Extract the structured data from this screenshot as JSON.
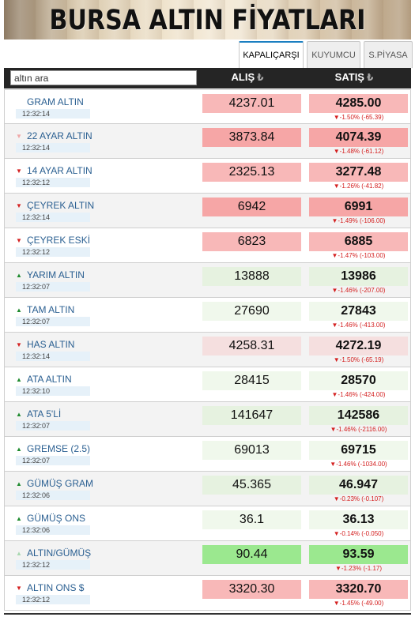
{
  "banner": {
    "title": "BURSA ALTIN FİYATLARI"
  },
  "tabs": [
    {
      "label": "KAPALIÇARŞI",
      "active": true
    },
    {
      "label": "KUYUMCU",
      "active": false
    },
    {
      "label": "S.PİYASA",
      "active": false
    }
  ],
  "search": {
    "placeholder": "altın ara",
    "value": "altın ara"
  },
  "header": {
    "alis": "ALIŞ",
    "satis": "SATIŞ",
    "currency_symbol": "₺"
  },
  "rows": [
    {
      "name": "GRAM ALTIN",
      "time": "12:32:14",
      "alis": "4237.01",
      "satis": "4285.00",
      "change": "▼-1.50% (-65.39)",
      "trend": "down",
      "arrow": "none",
      "color": "red-mid"
    },
    {
      "name": "22 AYAR ALTIN",
      "time": "12:32:14",
      "alis": "3873.84",
      "satis": "4074.39",
      "change": "▼-1.48% (-61.12)",
      "trend": "down",
      "arrow": "faint-down",
      "color": "red-strong"
    },
    {
      "name": "14 AYAR ALTIN",
      "time": "12:32:12",
      "alis": "2325.13",
      "satis": "3277.48",
      "change": "▼-1.26% (-41.82)",
      "trend": "down",
      "arrow": "down",
      "color": "red-mid"
    },
    {
      "name": "ÇEYREK ALTIN",
      "time": "12:32:14",
      "alis": "6942",
      "satis": "6991",
      "change": "▼-1.49% (-106.00)",
      "trend": "down",
      "arrow": "down",
      "color": "red-strong"
    },
    {
      "name": "ÇEYREK ESKİ",
      "time": "12:32:12",
      "alis": "6823",
      "satis": "6885",
      "change": "▼-1.47% (-103.00)",
      "trend": "down",
      "arrow": "down",
      "color": "red-mid"
    },
    {
      "name": "YARIM ALTIN",
      "time": "12:32:07",
      "alis": "13888",
      "satis": "13986",
      "change": "▼-1.46% (-207.00)",
      "trend": "up",
      "arrow": "up",
      "color": "green-light"
    },
    {
      "name": "TAM ALTIN",
      "time": "12:32:07",
      "alis": "27690",
      "satis": "27843",
      "change": "▼-1.46% (-413.00)",
      "trend": "up",
      "arrow": "up",
      "color": "green-pale"
    },
    {
      "name": "HAS ALTIN",
      "time": "12:32:14",
      "alis": "4258.31",
      "satis": "4272.19",
      "change": "▼-1.50% (-65.19)",
      "trend": "down",
      "arrow": "down",
      "color": "red-light"
    },
    {
      "name": "ATA ALTIN",
      "time": "12:32:10",
      "alis": "28415",
      "satis": "28570",
      "change": "▼-1.46% (-424.00)",
      "trend": "up",
      "arrow": "up",
      "color": "green-pale"
    },
    {
      "name": "ATA 5'Lİ",
      "time": "12:32:07",
      "alis": "141647",
      "satis": "142586",
      "change": "▼-1.46% (-2116.00)",
      "trend": "up",
      "arrow": "up",
      "color": "green-light"
    },
    {
      "name": "GREMSE (2.5)",
      "time": "12:32:07",
      "alis": "69013",
      "satis": "69715",
      "change": "▼-1.46% (-1034.00)",
      "trend": "up",
      "arrow": "up",
      "color": "green-pale"
    },
    {
      "name": "GÜMÜŞ GRAM",
      "time": "12:32:06",
      "alis": "45.365",
      "satis": "46.947",
      "change": "▼-0.23% (-0.107)",
      "trend": "up",
      "arrow": "up",
      "color": "green-light"
    },
    {
      "name": "GÜMÜŞ ONS",
      "time": "12:32:06",
      "alis": "36.1",
      "satis": "36.13",
      "change": "▼-0.14% (-0.050)",
      "trend": "up",
      "arrow": "up",
      "color": "green-pale"
    },
    {
      "name": "ALTIN/GÜMÜŞ",
      "time": "12:32:12",
      "alis": "90.44",
      "satis": "93.59",
      "change": "▼-1.23% (-1.17)",
      "trend": "up",
      "arrow": "faint-up",
      "color": "green-strong"
    },
    {
      "name": "ALTIN ONS $",
      "time": "12:32:12",
      "alis": "3320.30",
      "satis": "3320.70",
      "change": "▼-1.45% (-49.00)",
      "trend": "down",
      "arrow": "down",
      "color": "red-mid"
    }
  ]
}
